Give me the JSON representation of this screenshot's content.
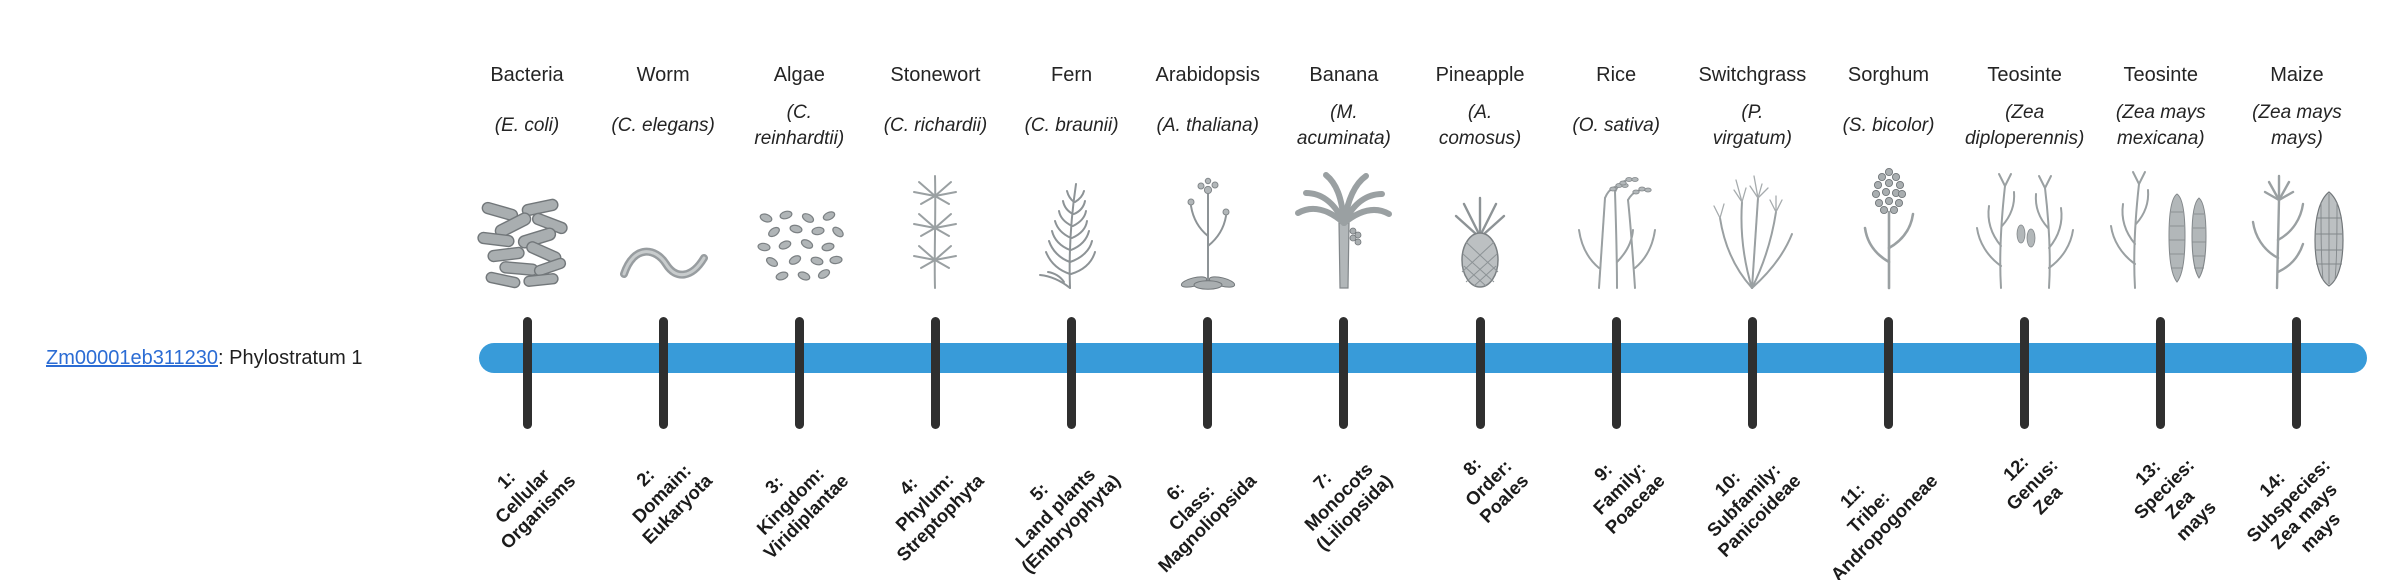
{
  "gene": {
    "id": "Zm00001eb311230",
    "suffix": ": Phylostratum 1"
  },
  "timeline": {
    "bar_color": "#389bd9",
    "tick_color": "#2f2f2f",
    "link_color": "#2b6cd4",
    "strata_count": "14"
  },
  "organisms": [
    {
      "common": "Bacteria",
      "scientific_lines": [
        "(E. coli)"
      ],
      "icon": "bacteria-icon",
      "stratum_lines": [
        "1:",
        "Cellular",
        "Organisms"
      ]
    },
    {
      "common": "Worm",
      "scientific_lines": [
        "(C. elegans)"
      ],
      "icon": "worm-icon",
      "stratum_lines": [
        "2:",
        "Domain:",
        "Eukaryota"
      ]
    },
    {
      "common": "Algae",
      "scientific_lines": [
        "(C.",
        "reinhardtii)"
      ],
      "icon": "algae-icon",
      "stratum_lines": [
        "3:",
        "Kingdom:",
        "Viridiplantae"
      ]
    },
    {
      "common": "Stonewort",
      "scientific_lines": [
        "(C. richardii)"
      ],
      "icon": "stonewort-icon",
      "stratum_lines": [
        "4:",
        "Phylum:",
        "Streptophyta"
      ]
    },
    {
      "common": "Fern",
      "scientific_lines": [
        "(C. braunii)"
      ],
      "icon": "fern-icon",
      "stratum_lines": [
        "5:",
        "Land plants",
        "(Embryophyta)"
      ]
    },
    {
      "common": "Arabidopsis",
      "scientific_lines": [
        "(A. thaliana)"
      ],
      "icon": "arabidopsis-icon",
      "stratum_lines": [
        "6:",
        "Class:",
        "Magnoliopsida"
      ]
    },
    {
      "common": "Banana",
      "scientific_lines": [
        "(M.",
        "acuminata)"
      ],
      "icon": "banana-icon",
      "stratum_lines": [
        "7:",
        "Monocots",
        "(Liliopsida)"
      ]
    },
    {
      "common": "Pineapple",
      "scientific_lines": [
        "(A.",
        "comosus)"
      ],
      "icon": "pineapple-icon",
      "stratum_lines": [
        "8:",
        "Order:",
        "Poales"
      ]
    },
    {
      "common": "Rice",
      "scientific_lines": [
        "(O. sativa)"
      ],
      "icon": "rice-icon",
      "stratum_lines": [
        "9:",
        "Family:",
        "Poaceae"
      ]
    },
    {
      "common": "Switchgrass",
      "scientific_lines": [
        "(P.",
        "virgatum)"
      ],
      "icon": "switchgrass-icon",
      "stratum_lines": [
        "10:",
        "Subfamily:",
        "Panicoideae"
      ]
    },
    {
      "common": "Sorghum",
      "scientific_lines": [
        "(S. bicolor)"
      ],
      "icon": "sorghum-icon",
      "stratum_lines": [
        "11:",
        "Tribe:",
        "Andropogoneae"
      ]
    },
    {
      "common": "Teosinte",
      "scientific_lines": [
        "(Zea",
        "diploperennis)"
      ],
      "icon": "teosinte-icon",
      "stratum_lines": [
        "12:",
        "Genus:",
        "Zea"
      ]
    },
    {
      "common": "Teosinte",
      "scientific_lines": [
        "(Zea mays",
        "mexicana)"
      ],
      "icon": "teosinte-ear-icon",
      "stratum_lines": [
        "13:",
        "Species:",
        "Zea",
        "mays"
      ]
    },
    {
      "common": "Maize",
      "scientific_lines": [
        "(Zea mays",
        "mays)"
      ],
      "icon": "maize-icon",
      "stratum_lines": [
        "14:",
        "Subspecies:",
        "Zea mays",
        "mays"
      ]
    }
  ]
}
